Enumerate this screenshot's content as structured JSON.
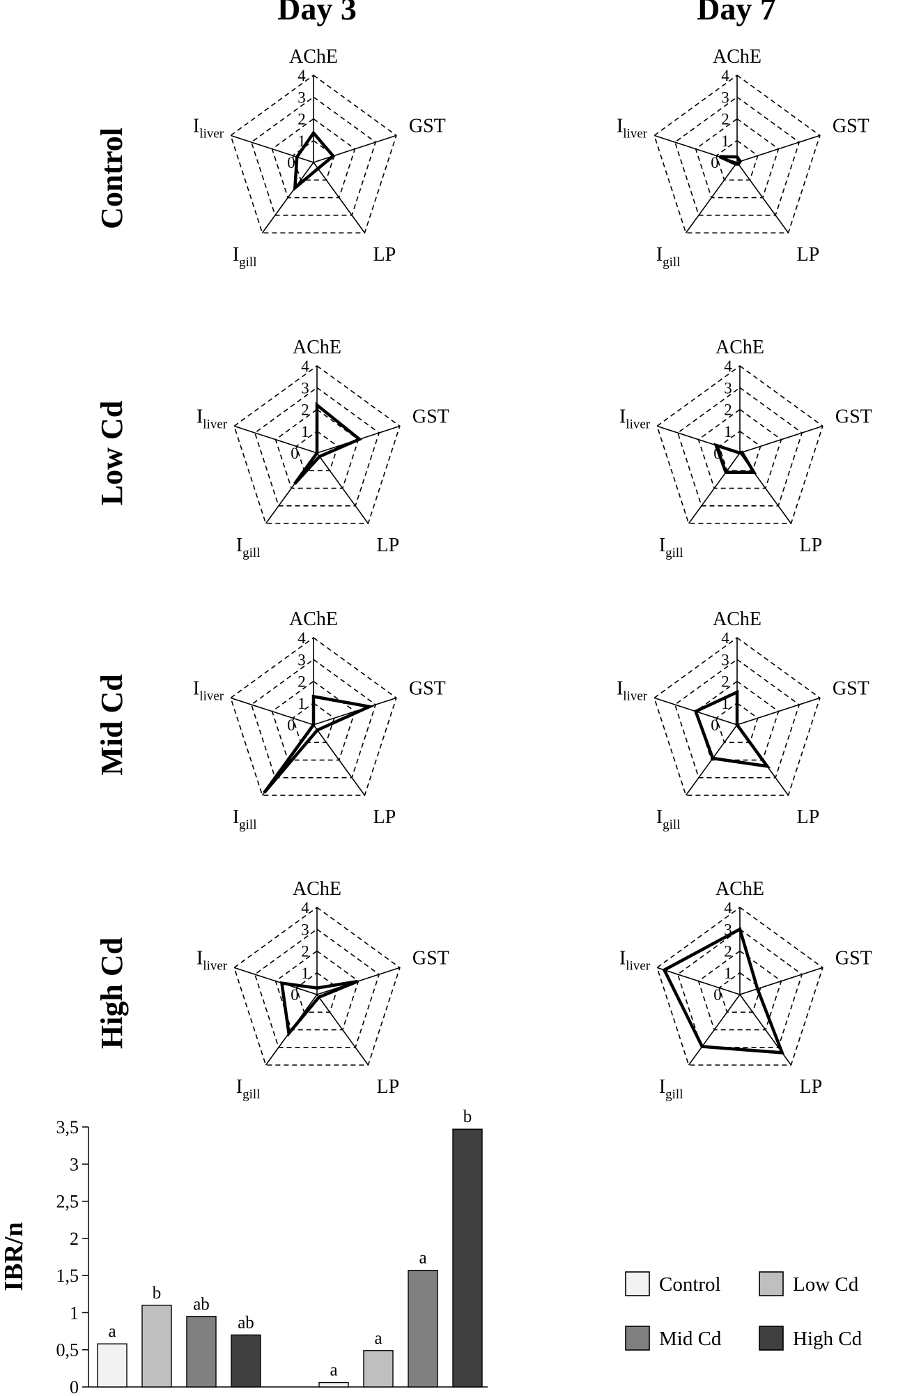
{
  "columns": [
    "Day 3",
    "Day 7"
  ],
  "rows": [
    "Control",
    "Low Cd",
    "Mid Cd",
    "High Cd"
  ],
  "radar_axes": [
    {
      "main": "AChE",
      "sub": ""
    },
    {
      "main": "GST",
      "sub": ""
    },
    {
      "main": "LP",
      "sub": ""
    },
    {
      "main": "I",
      "sub": "gill"
    },
    {
      "main": "I",
      "sub": "liver"
    }
  ],
  "radar_ticks": [
    "0",
    "1",
    "2",
    "3",
    "4"
  ],
  "colors": {
    "Control": "#f2f2f2",
    "Low Cd": "#bfbfbf",
    "Mid Cd": "#808080",
    "High Cd": "#404040",
    "line": "#000000"
  },
  "chart_data": [
    {
      "type": "radar",
      "title": "Day 3 · Control",
      "axes": [
        "AChE",
        "GST",
        "LP",
        "Igill",
        "Iliver"
      ],
      "values": [
        1.35,
        0.95,
        0.35,
        1.45,
        0.8
      ],
      "rmax": 4
    },
    {
      "type": "radar",
      "title": "Day 7 · Control",
      "axes": [
        "AChE",
        "GST",
        "LP",
        "Igill",
        "Iliver"
      ],
      "values": [
        0.25,
        0.15,
        0.1,
        0.1,
        0.85
      ],
      "rmax": 4
    },
    {
      "type": "radar",
      "title": "Day 3 · Low Cd",
      "axes": [
        "AChE",
        "GST",
        "LP",
        "Igill",
        "Iliver"
      ],
      "values": [
        2.2,
        2.05,
        0.2,
        1.75,
        0.0
      ],
      "rmax": 4
    },
    {
      "type": "radar",
      "title": "Day 7 · Low Cd",
      "axes": [
        "AChE",
        "GST",
        "LP",
        "Igill",
        "Iliver"
      ],
      "values": [
        0.0,
        0.1,
        1.1,
        1.1,
        1.15
      ],
      "rmax": 4
    },
    {
      "type": "radar",
      "title": "Day 3 · Mid Cd",
      "axes": [
        "AChE",
        "GST",
        "LP",
        "Igill",
        "Iliver"
      ],
      "values": [
        1.3,
        2.7,
        0.3,
        3.85,
        0.0
      ],
      "rmax": 4
    },
    {
      "type": "radar",
      "title": "Day 7 · Mid Cd",
      "axes": [
        "AChE",
        "GST",
        "LP",
        "Igill",
        "Iliver"
      ],
      "values": [
        1.5,
        0.0,
        2.35,
        1.9,
        2.0
      ],
      "rmax": 4
    },
    {
      "type": "radar",
      "title": "Day 3 · High Cd",
      "axes": [
        "AChE",
        "GST",
        "LP",
        "Igill",
        "Iliver"
      ],
      "values": [
        0.3,
        1.95,
        0.15,
        2.2,
        1.7
      ],
      "rmax": 4
    },
    {
      "type": "radar",
      "title": "Day 7 · High Cd",
      "axes": [
        "AChE",
        "GST",
        "LP",
        "Igill",
        "Iliver"
      ],
      "values": [
        3.0,
        0.85,
        3.3,
        2.95,
        3.65
      ],
      "rmax": 4
    },
    {
      "type": "bar",
      "ylabel": "IBR/n",
      "ylim": [
        0,
        3.5
      ],
      "yticks": [
        "0",
        "0,5",
        "1",
        "1,5",
        "2",
        "2,5",
        "3",
        "3,5"
      ],
      "groups": [
        "Day 3",
        "Day 7"
      ],
      "series": [
        {
          "name": "Control",
          "values": [
            0.58,
            0.06
          ],
          "letters": [
            "a",
            "a"
          ]
        },
        {
          "name": "Low Cd",
          "values": [
            1.1,
            0.49
          ],
          "letters": [
            "b",
            "a"
          ]
        },
        {
          "name": "Mid Cd",
          "values": [
            0.95,
            1.57
          ],
          "letters": [
            "ab",
            "a"
          ]
        },
        {
          "name": "High Cd",
          "values": [
            0.7,
            3.47
          ],
          "letters": [
            "ab",
            "b"
          ]
        }
      ],
      "legend": [
        "Control",
        "Low Cd",
        "Mid Cd",
        "High Cd"
      ]
    }
  ]
}
